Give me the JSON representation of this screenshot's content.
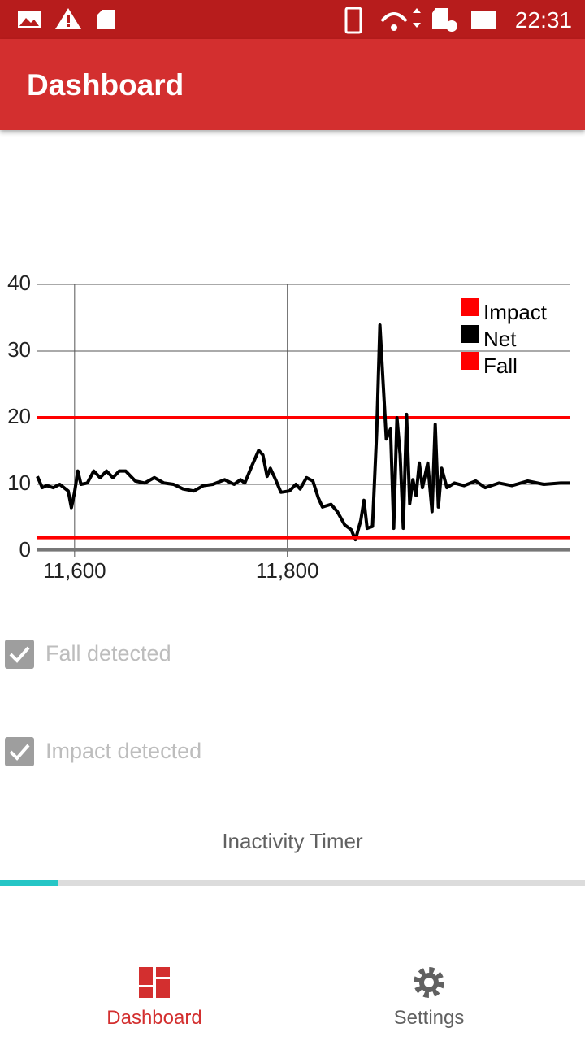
{
  "status_bar": {
    "time": "22:31"
  },
  "app_bar": {
    "title": "Dashboard"
  },
  "chart_data": {
    "type": "line",
    "series": [
      {
        "name": "Impact",
        "color": "#ff0000",
        "x": [
          11565,
          12066
        ],
        "values": [
          20,
          20
        ]
      },
      {
        "name": "Net",
        "color": "#000000",
        "x": [
          11565,
          11569.6,
          11574,
          11580,
          11586,
          11594,
          11597,
          11600,
          11603,
          11606,
          11612,
          11618,
          11624,
          11630,
          11636,
          11642,
          11648,
          11657,
          11666,
          11675,
          11684,
          11693,
          11702,
          11712,
          11721,
          11730,
          11741,
          11750,
          11756,
          11760,
          11767,
          11773,
          11777,
          11781,
          11784,
          11789,
          11794,
          11802,
          11808,
          11812,
          11818,
          11824,
          11829,
          11833,
          11841,
          11847,
          11854,
          11860,
          11864,
          11869,
          11872,
          11875,
          11880,
          11884,
          11887,
          11890,
          11893,
          11897,
          11900,
          11903,
          11906,
          11909,
          11912,
          11915,
          11918,
          11921,
          11924,
          11927,
          11932,
          11936,
          11939,
          11942,
          11945,
          11950,
          11957,
          11966,
          11977,
          11986,
          11999,
          12011,
          12026,
          12041,
          12057,
          12066
        ],
        "values": [
          11.2,
          9.5,
          9.8,
          9.5,
          10,
          9,
          6.5,
          8.8,
          12,
          10,
          10.2,
          12,
          11,
          12,
          11,
          12,
          12,
          10.5,
          10.2,
          11,
          10.2,
          10,
          9.3,
          9,
          9.8,
          10,
          10.7,
          10,
          10.7,
          10.2,
          12.9,
          15.1,
          14.4,
          11.2,
          12.4,
          10.7,
          8.8,
          9,
          10,
          9.3,
          11,
          10.5,
          8,
          6.6,
          7,
          5.9,
          3.9,
          3.2,
          1.7,
          4.6,
          7.6,
          3.4,
          3.7,
          18,
          33.9,
          25.4,
          16.8,
          18.3,
          3.4,
          20,
          14.4,
          3.4,
          20.5,
          7.1,
          10.7,
          8.3,
          13.2,
          9.5,
          13.2,
          5.9,
          19,
          6.6,
          12.4,
          9.5,
          10.2,
          9.8,
          10.5,
          9.5,
          10.2,
          9.8,
          10.5,
          10,
          10.2,
          10.2
        ]
      },
      {
        "name": "Fall",
        "color": "#ff0000",
        "x": [
          11565,
          12066
        ],
        "values": [
          2,
          2
        ]
      }
    ],
    "xlim": [
      11565,
      12066
    ],
    "ylim": [
      0,
      40
    ],
    "xticks": [
      {
        "value": 11600,
        "label": "11,600"
      },
      {
        "value": 11800,
        "label": "11,800"
      }
    ],
    "yticks": [
      0,
      10,
      20,
      30,
      40
    ],
    "grid": true
  },
  "checkboxes": [
    {
      "label": "Fall detected",
      "checked": true
    },
    {
      "label": "Impact detected",
      "checked": true
    }
  ],
  "inactivity_timer": {
    "label": "Inactivity Timer",
    "progress": 10
  },
  "bottom_nav": [
    {
      "label": "Dashboard",
      "selected": true
    },
    {
      "label": "Settings",
      "selected": false
    }
  ]
}
